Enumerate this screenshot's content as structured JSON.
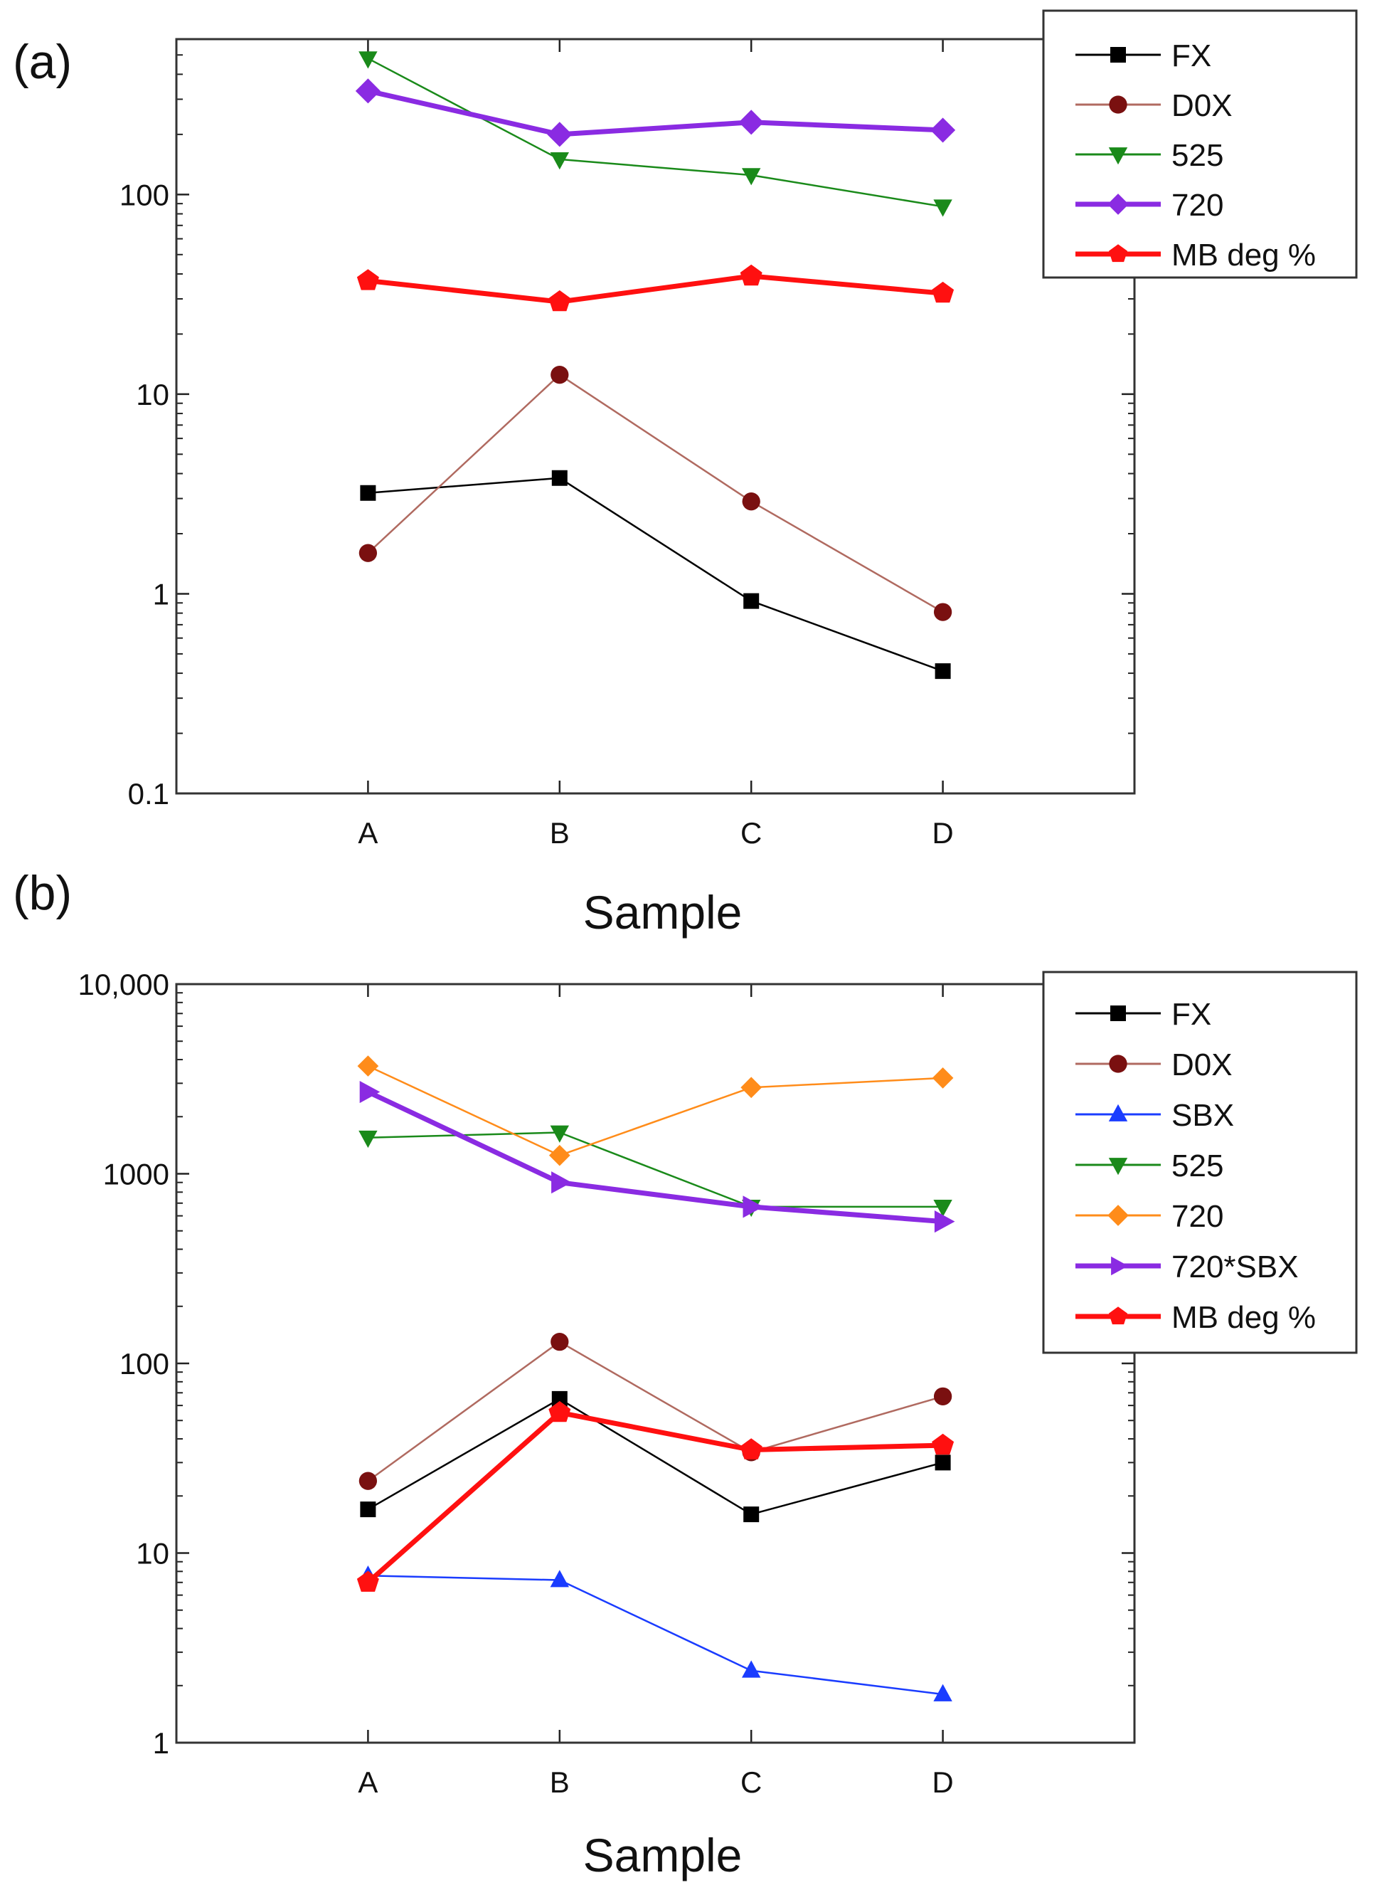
{
  "chart_data": [
    {
      "type": "line",
      "panel_label": "(a)",
      "categories": [
        "A",
        "B",
        "C",
        "D"
      ],
      "xlabel": "Sample",
      "ylabel": "",
      "yscale": "log",
      "ylim": [
        0.1,
        600
      ],
      "yticks": [
        0.1,
        1,
        10,
        100
      ],
      "ytick_labels": [
        "0.1",
        "1",
        "10",
        "100"
      ],
      "legend_position": "top-right",
      "series": [
        {
          "name": "FX",
          "color": "#000000",
          "marker": "square",
          "thick": false,
          "values": [
            3.2,
            3.8,
            0.92,
            0.41
          ]
        },
        {
          "name": "D0X",
          "color": "#7a1010",
          "line_color": "#b06a60",
          "marker": "circle",
          "thick": false,
          "values": [
            1.6,
            12.5,
            2.9,
            0.81
          ]
        },
        {
          "name": "525",
          "color": "#1a8a1a",
          "marker": "triangle-down",
          "thick": false,
          "values": [
            480,
            150,
            125,
            87
          ]
        },
        {
          "name": "720",
          "color": "#8a2be2",
          "marker": "diamond",
          "thick": true,
          "values": [
            330,
            200,
            230,
            210
          ]
        },
        {
          "name": "MB deg %",
          "color": "#ff1010",
          "marker": "pentagon",
          "thick": true,
          "values": [
            37,
            29,
            39,
            32
          ]
        }
      ]
    },
    {
      "type": "line",
      "panel_label": "(b)",
      "categories": [
        "A",
        "B",
        "C",
        "D"
      ],
      "xlabel": "Sample",
      "ylabel": "",
      "yscale": "log",
      "ylim": [
        1,
        10000
      ],
      "yticks": [
        1,
        10,
        100,
        1000,
        10000
      ],
      "ytick_labels": [
        "1",
        "10",
        "100",
        "1000",
        "10,000"
      ],
      "legend_position": "top-right",
      "series": [
        {
          "name": "FX",
          "color": "#000000",
          "marker": "square",
          "thick": false,
          "values": [
            17,
            65,
            16,
            30
          ]
        },
        {
          "name": "D0X",
          "color": "#7a1010",
          "line_color": "#b06a60",
          "marker": "circle",
          "thick": false,
          "values": [
            24,
            130,
            34,
            67
          ]
        },
        {
          "name": "SBX",
          "color": "#1a3cff",
          "marker": "triangle-up",
          "thick": false,
          "values": [
            7.6,
            7.2,
            2.4,
            1.8
          ]
        },
        {
          "name": "525",
          "color": "#1a8a1a",
          "marker": "triangle-down",
          "thick": false,
          "values": [
            1550,
            1650,
            670,
            670
          ]
        },
        {
          "name": "720",
          "color": "#ff8c1a",
          "marker": "diamond",
          "thick": false,
          "values": [
            3700,
            1250,
            2850,
            3200
          ]
        },
        {
          "name": "720*SBX",
          "color": "#8a2be2",
          "marker": "triangle-right",
          "thick": true,
          "values": [
            2700,
            900,
            670,
            560
          ]
        },
        {
          "name": "MB deg %",
          "color": "#ff1010",
          "marker": "pentagon",
          "thick": true,
          "values": [
            7,
            55,
            35,
            37
          ]
        }
      ]
    }
  ]
}
